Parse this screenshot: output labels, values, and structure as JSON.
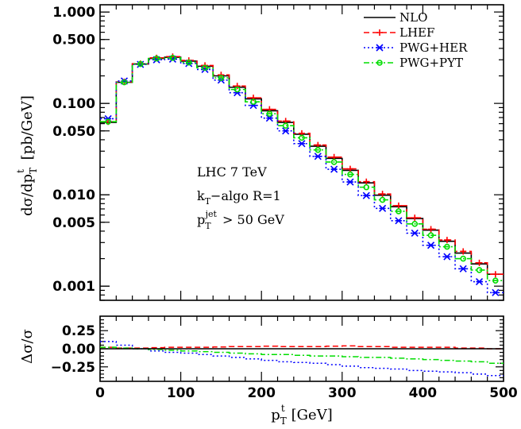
{
  "chart_data": [
    {
      "type": "line",
      "subtype": "step-histogram",
      "title": "",
      "xlabel": "p_T^t [GeV]",
      "xlabel_parts": {
        "main": "p",
        "sub": "T",
        "sup": "t",
        "unit": "[GeV]"
      },
      "ylabel": "dσ/dp_T^t [pb/GeV]",
      "ylabel_parts": {
        "pre": "dσ/dp",
        "sub": "T",
        "sup": "t",
        "unit": "[pb/GeV]"
      },
      "xlim": [
        0,
        500
      ],
      "ylim": [
        0.0007,
        1.2
      ],
      "yscale": "log",
      "ytick_labels": [
        "1.000",
        "0.500",
        "0.100",
        "0.050",
        "0.010",
        "0.005",
        "0.001"
      ],
      "ytick_values": [
        1.0,
        0.5,
        0.1,
        0.05,
        0.01,
        0.005,
        0.001
      ],
      "xtick_values": [
        0,
        100,
        200,
        300,
        400,
        500
      ],
      "xtick_labels": [
        "0",
        "100",
        "200",
        "300",
        "400",
        "500"
      ],
      "grid": false,
      "legend_position": "top-right",
      "bin_edges": [
        0,
        20,
        40,
        60,
        80,
        100,
        120,
        140,
        160,
        180,
        200,
        220,
        240,
        260,
        280,
        300,
        320,
        340,
        360,
        380,
        400,
        420,
        440,
        460,
        480,
        500
      ],
      "annotations": [
        {
          "text": "LHC 7 TeV"
        },
        {
          "main": "k",
          "sub": "T",
          "rest": "−algo R=1"
        },
        {
          "main": "p",
          "sub": "T",
          "sup": "jet",
          "rest": " > 50 GeV"
        }
      ],
      "series": [
        {
          "name": "NLO",
          "color": "#000000",
          "dash": "solid",
          "marker": "none",
          "values": [
            0.062,
            0.17,
            0.27,
            0.31,
            0.32,
            0.29,
            0.255,
            0.2,
            0.15,
            0.112,
            0.083,
            0.062,
            0.046,
            0.034,
            0.025,
            0.0185,
            0.0135,
            0.0099,
            0.0074,
            0.0055,
            0.0041,
            0.0031,
            0.0023,
            0.00175,
            0.00135
          ]
        },
        {
          "name": "LHEF",
          "color": "#ff0000",
          "dash": "dashed",
          "marker": "plus",
          "values": [
            0.063,
            0.172,
            0.272,
            0.315,
            0.325,
            0.295,
            0.26,
            0.205,
            0.155,
            0.115,
            0.086,
            0.064,
            0.047,
            0.035,
            0.0258,
            0.0192,
            0.0139,
            0.0102,
            0.0076,
            0.0056,
            0.0042,
            0.0032,
            0.0024,
            0.0018,
            0.00135
          ]
        },
        {
          "name": "PWG+HER",
          "color": "#0000ff",
          "dash": "dotted",
          "marker": "asterisk",
          "values": [
            0.068,
            0.176,
            0.267,
            0.3,
            0.305,
            0.273,
            0.235,
            0.18,
            0.131,
            0.095,
            0.069,
            0.05,
            0.0363,
            0.0263,
            0.019,
            0.0138,
            0.0098,
            0.0071,
            0.0052,
            0.0038,
            0.0028,
            0.0021,
            0.00155,
            0.00112,
            0.00085
          ]
        },
        {
          "name": "PWG+PYT",
          "color": "#00dd00",
          "dash": "dashdot",
          "marker": "circle",
          "values": [
            0.063,
            0.17,
            0.27,
            0.31,
            0.315,
            0.28,
            0.245,
            0.19,
            0.142,
            0.104,
            0.077,
            0.057,
            0.042,
            0.031,
            0.0228,
            0.0167,
            0.0121,
            0.0088,
            0.0066,
            0.0048,
            0.0036,
            0.0027,
            0.002,
            0.0015,
            0.00115
          ]
        }
      ]
    },
    {
      "type": "line",
      "subtype": "step-histogram",
      "title": "",
      "xlabel": "p_T^t [GeV]",
      "ylabel": "Δσ/σ",
      "xlim": [
        0,
        500
      ],
      "ylim": [
        -0.45,
        0.45
      ],
      "yscale": "linear",
      "ytick_labels": [
        "0.25",
        "0.00",
        "−0.25"
      ],
      "ytick_values": [
        0.25,
        0.0,
        -0.25
      ],
      "xtick_labels": [
        "0",
        "100",
        "200",
        "300",
        "400",
        "500"
      ],
      "xtick_values": [
        0,
        100,
        200,
        300,
        400,
        500
      ],
      "grid": false,
      "bin_edges": [
        0,
        20,
        40,
        60,
        80,
        100,
        120,
        140,
        160,
        180,
        200,
        220,
        240,
        260,
        280,
        300,
        320,
        340,
        360,
        380,
        400,
        420,
        440,
        460,
        480,
        500
      ],
      "series": [
        {
          "name": "LHEF",
          "color": "#ff0000",
          "dash": "dashed",
          "values": [
            0.02,
            0.01,
            0.01,
            0.015,
            0.02,
            0.02,
            0.02,
            0.025,
            0.03,
            0.03,
            0.035,
            0.03,
            0.03,
            0.03,
            0.035,
            0.04,
            0.03,
            0.03,
            0.02,
            0.02,
            0.02,
            0.02,
            0.01,
            0.01,
            0.0
          ]
        },
        {
          "name": "PWG+HER",
          "color": "#0000ff",
          "dash": "dotted",
          "values": [
            0.1,
            0.05,
            0.0,
            -0.03,
            -0.05,
            -0.06,
            -0.08,
            -0.1,
            -0.12,
            -0.14,
            -0.16,
            -0.18,
            -0.19,
            -0.2,
            -0.22,
            -0.24,
            -0.26,
            -0.27,
            -0.28,
            -0.3,
            -0.31,
            -0.32,
            -0.33,
            -0.35,
            -0.37
          ]
        },
        {
          "name": "PWG+PYT",
          "color": "#00dd00",
          "dash": "dashdot",
          "values": [
            0.02,
            0.01,
            0.0,
            -0.01,
            -0.02,
            -0.03,
            -0.04,
            -0.05,
            -0.06,
            -0.07,
            -0.08,
            -0.08,
            -0.09,
            -0.1,
            -0.1,
            -0.11,
            -0.12,
            -0.12,
            -0.13,
            -0.14,
            -0.15,
            -0.16,
            -0.17,
            -0.18,
            -0.2
          ]
        },
        {
          "name": "NLO",
          "color": "#000000",
          "dash": "solid",
          "values": [
            0,
            0,
            0,
            0,
            0,
            0,
            0,
            0,
            0,
            0,
            0,
            0,
            0,
            0,
            0,
            0,
            0,
            0,
            0,
            0,
            0,
            0,
            0,
            0,
            0
          ]
        }
      ]
    }
  ]
}
